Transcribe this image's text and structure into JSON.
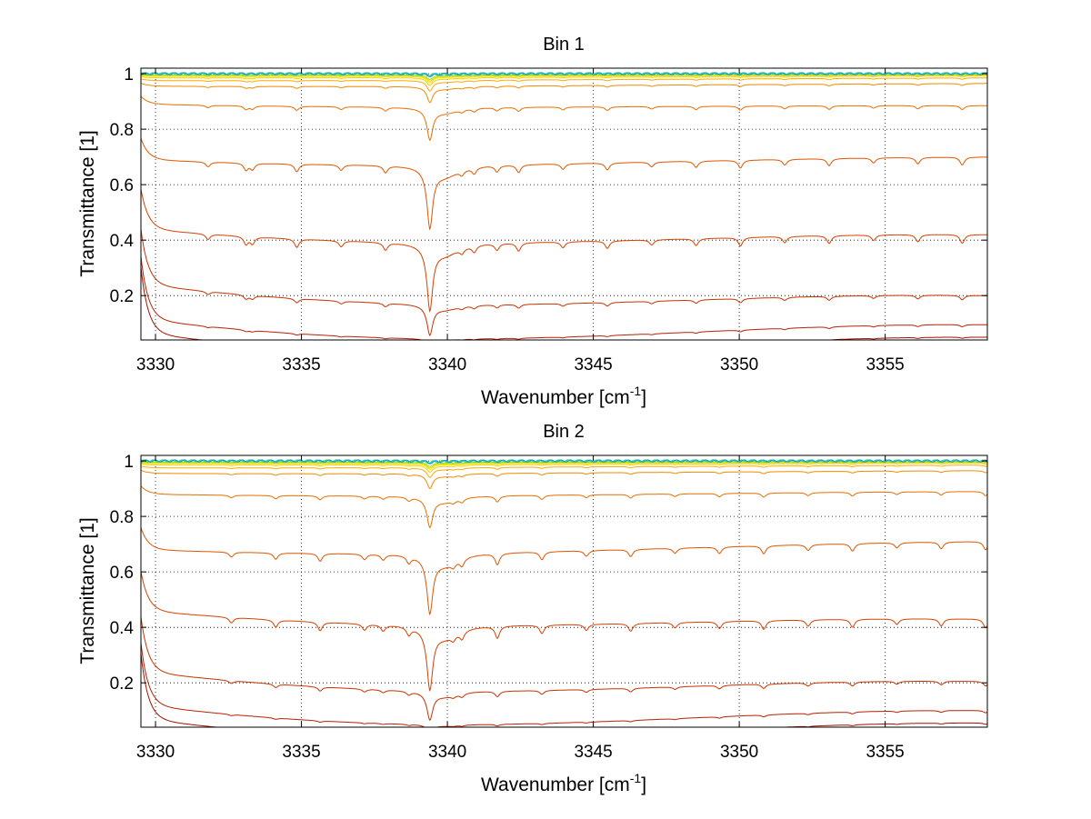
{
  "chart_data": [
    {
      "type": "line",
      "title": "Bin 1",
      "xlabel": "Wavenumber [cm",
      "xlabel_sup": "-1",
      "xlabel_tail": "]",
      "ylabel": "Transmittance [1]",
      "xlim": [
        3329.5,
        3358.5
      ],
      "ylim": [
        0.04,
        1.02
      ],
      "xticks": [
        3330,
        3335,
        3340,
        3345,
        3350,
        3355
      ],
      "yticks": [
        0.2,
        0.4,
        0.6,
        0.8,
        1
      ],
      "grid": true,
      "main_absorption_x": 3339.4,
      "line_spacing": 1.52,
      "line_phase": 3331.8,
      "secondary_lines": [
        3333.1,
        3340.5,
        3341.7
      ],
      "series_baseline_left": [
        1.0,
        0.999,
        0.998,
        0.996,
        0.993,
        0.99,
        0.985,
        0.975,
        0.955,
        0.89,
        0.69,
        0.44,
        0.24,
        0.115,
        0.065
      ],
      "series_baseline_right": [
        1.0,
        1.0,
        0.999,
        0.998,
        0.997,
        0.995,
        0.992,
        0.985,
        0.965,
        0.885,
        0.7,
        0.42,
        0.2,
        0.095,
        0.05
      ],
      "series_colors": [
        "#00a0ff",
        "#22c8a0",
        "#6ed24a",
        "#a8dc20",
        "#d6e000",
        "#ffe000",
        "#ffcc00",
        "#ffaa00",
        "#f08a00",
        "#e86e00",
        "#e05500",
        "#d84000",
        "#c83000",
        "#b82000",
        "#a01000"
      ]
    },
    {
      "type": "line",
      "title": "Bin 2",
      "xlabel": "Wavenumber [cm",
      "xlabel_sup": "-1",
      "xlabel_tail": "]",
      "ylabel": "Transmittance [1]",
      "xlim": [
        3329.5,
        3358.5
      ],
      "ylim": [
        0.04,
        1.02
      ],
      "xticks": [
        3330,
        3335,
        3340,
        3345,
        3350,
        3355
      ],
      "yticks": [
        0.2,
        0.4,
        0.6,
        0.8,
        1
      ],
      "grid": true,
      "main_absorption_x": 3339.4,
      "line_spacing": 1.52,
      "line_phase": 3332.6,
      "secondary_lines": [
        3337.8,
        3340.5,
        3341.7
      ],
      "series_baseline_left": [
        1.0,
        0.999,
        0.998,
        0.996,
        0.993,
        0.99,
        0.985,
        0.975,
        0.955,
        0.88,
        0.68,
        0.46,
        0.24,
        0.12,
        0.07
      ],
      "series_baseline_right": [
        1.0,
        1.0,
        0.999,
        0.998,
        0.997,
        0.995,
        0.992,
        0.985,
        0.965,
        0.89,
        0.71,
        0.43,
        0.205,
        0.1,
        0.055
      ],
      "series_colors": [
        "#00a0ff",
        "#22c8a0",
        "#6ed24a",
        "#a8dc20",
        "#d6e000",
        "#ffe000",
        "#ffcc00",
        "#ffaa00",
        "#f08a00",
        "#e86e00",
        "#e05500",
        "#d84000",
        "#c83000",
        "#b82000",
        "#a01000"
      ]
    }
  ]
}
